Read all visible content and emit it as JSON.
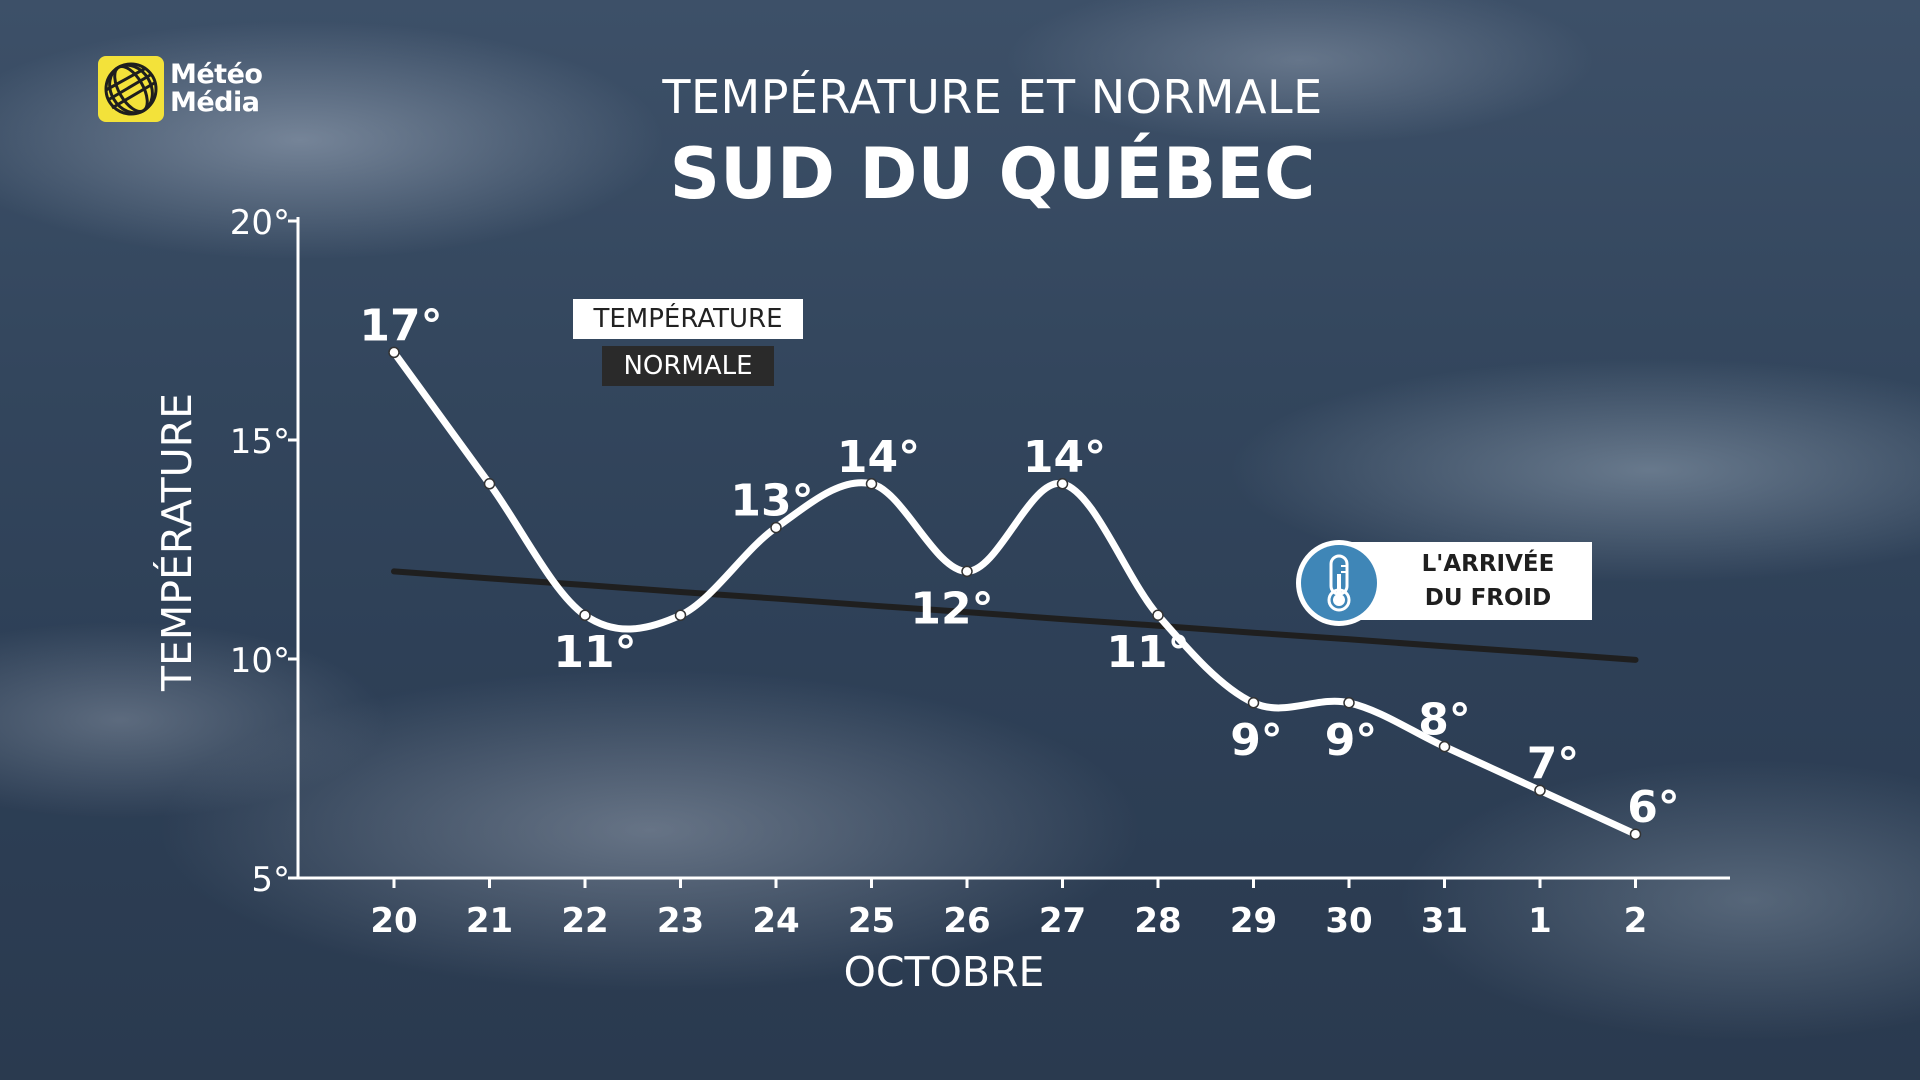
{
  "logo": {
    "line1": "Météo",
    "line2": "Média"
  },
  "header": {
    "title": "TEMPÉRATURE ET NORMALE",
    "subtitle": "SUD DU QUÉBEC"
  },
  "legend": {
    "temperature_label": "TEMPÉRATURE",
    "normal_label": "NORMALE"
  },
  "callout": {
    "line1": "L'ARRIVÉE",
    "line2": "DU FROID",
    "icon": "thermometer-icon"
  },
  "colors": {
    "temperature_line": "#ffffff",
    "normal_line": "#1f1f1f",
    "logo_yellow": "#f3e23a",
    "callout_icon_blue": "#3f86b7"
  },
  "chart_data": {
    "type": "line",
    "xlabel": "OCTOBRE",
    "ylabel": "TEMPÉRATURE",
    "categories": [
      "20",
      "21",
      "22",
      "23",
      "24",
      "25",
      "26",
      "27",
      "28",
      "29",
      "30",
      "31",
      "1",
      "2"
    ],
    "ylim": [
      5,
      20
    ],
    "y_ticks": [
      5,
      10,
      15,
      20
    ],
    "y_tick_labels": [
      "5°",
      "10°",
      "15°",
      "20°"
    ],
    "grid": false,
    "series": [
      {
        "name": "TEMPÉRATURE",
        "values": [
          17,
          14,
          11,
          11,
          13,
          14,
          12,
          14,
          11,
          9,
          9,
          8,
          7,
          6
        ],
        "data_labels": [
          "17°",
          "",
          "11°",
          "",
          "13°",
          "14°",
          "12°",
          "14°",
          "11°",
          "9°",
          "9°",
          "8°",
          "7°",
          "6°"
        ]
      },
      {
        "name": "NORMALE",
        "values": [
          12,
          11.84,
          11.69,
          11.53,
          11.38,
          11.22,
          11.07,
          10.91,
          10.76,
          10.6,
          10.45,
          10.29,
          10.14,
          9.98
        ]
      }
    ]
  }
}
